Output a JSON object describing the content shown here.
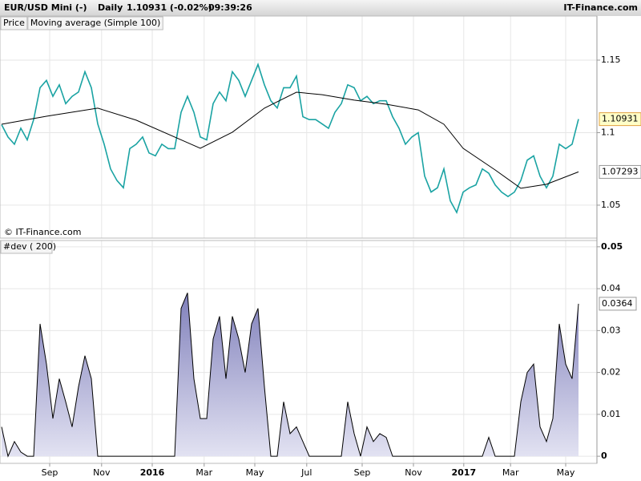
{
  "header": {
    "symbol": "EUR/USD Mini (-)",
    "period": "Daily",
    "quote": "1.10931 (-0.02%)",
    "time": "09:39:26",
    "brand": "IT-Finance.com"
  },
  "chart_data": [
    {
      "type": "line",
      "copyright": "© IT-Finance.com",
      "x": [
        0,
        1,
        2,
        3,
        4,
        5,
        6,
        7,
        8,
        9,
        10,
        11,
        12,
        13,
        14,
        15,
        16,
        17,
        18,
        19,
        20,
        21,
        22,
        23,
        24,
        25,
        26,
        27,
        28,
        29,
        30,
        31,
        32,
        33,
        34,
        35,
        36,
        37,
        38,
        39,
        40,
        41,
        42,
        43,
        44,
        45,
        46,
        47,
        48,
        49,
        50,
        51,
        52,
        53,
        54,
        55,
        56,
        57,
        58,
        59,
        60,
        61,
        62,
        63,
        64,
        65,
        66,
        67,
        68,
        69,
        70,
        71,
        72,
        73,
        74,
        75,
        76,
        77,
        78,
        79,
        80,
        81,
        82,
        83,
        84,
        85,
        86,
        87,
        88,
        89,
        90
      ],
      "xlim": [
        -0.25,
        92.875
      ],
      "ylim": [
        1.0273,
        1.1804
      ],
      "yticks": [
        1.05,
        1.1,
        1.15
      ],
      "grid": true,
      "series": [
        {
          "name": "Price",
          "color": "#1aa3a3",
          "values": [
            1.1055,
            1.097,
            1.092,
            1.103,
            1.095,
            1.109,
            1.131,
            1.136,
            1.125,
            1.133,
            1.12,
            1.125,
            1.128,
            1.142,
            1.131,
            1.106,
            1.092,
            1.075,
            1.067,
            1.062,
            1.089,
            1.092,
            1.097,
            1.086,
            1.084,
            1.092,
            1.089,
            1.089,
            1.114,
            1.125,
            1.114,
            1.097,
            1.095,
            1.12,
            1.128,
            1.122,
            1.142,
            1.136,
            1.125,
            1.136,
            1.147,
            1.133,
            1.122,
            1.117,
            1.131,
            1.131,
            1.139,
            1.111,
            1.109,
            1.109,
            1.106,
            1.103,
            1.114,
            1.12,
            1.133,
            1.131,
            1.122,
            1.125,
            1.12,
            1.122,
            1.122,
            1.111,
            1.103,
            1.092,
            1.097,
            1.1,
            1.07,
            1.059,
            1.062,
            1.075,
            1.053,
            1.045,
            1.059,
            1.062,
            1.064,
            1.075,
            1.072,
            1.064,
            1.059,
            1.056,
            1.059,
            1.067,
            1.081,
            1.084,
            1.07,
            1.062,
            1.07,
            1.092,
            1.089,
            1.092,
            1.10931
          ]
        },
        {
          "name": "Moving average (Simple 100)",
          "color": "#000000",
          "x": [
            0,
            7,
            15,
            21,
            29,
            31,
            36,
            41,
            46,
            50,
            55,
            60,
            65,
            69,
            72,
            77,
            81,
            85,
            90
          ],
          "values": [
            1.1058,
            1.1113,
            1.1169,
            1.1086,
            1.0931,
            1.0892,
            1.1003,
            1.1169,
            1.1279,
            1.1262,
            1.1224,
            1.1196,
            1.1157,
            1.1058,
            1.0892,
            1.0743,
            1.0616,
            1.0644,
            1.07293
          ]
        }
      ]
    },
    {
      "type": "area",
      "title": "#dev ( 200)",
      "x": [
        0,
        1,
        2,
        3,
        4,
        5,
        6,
        7,
        8,
        9,
        10,
        11,
        12,
        13,
        14,
        15,
        16,
        17,
        18,
        19,
        20,
        21,
        22,
        23,
        24,
        25,
        26,
        27,
        28,
        29,
        30,
        31,
        32,
        33,
        34,
        35,
        36,
        37,
        38,
        39,
        40,
        41,
        42,
        43,
        44,
        45,
        46,
        47,
        48,
        49,
        50,
        51,
        52,
        53,
        54,
        55,
        56,
        57,
        58,
        59,
        60,
        61,
        62,
        63,
        64,
        65,
        66,
        67,
        68,
        69,
        70,
        71,
        72,
        73,
        74,
        75,
        76,
        77,
        78,
        79,
        80,
        81,
        82,
        83,
        84,
        85,
        86,
        87,
        88,
        89,
        90
      ],
      "xlim": [
        -0.25,
        92.875
      ],
      "ylim": [
        -0.0017,
        0.0515
      ],
      "yticks": [
        0,
        0.01,
        0.02,
        0.03,
        0.04,
        0.05
      ],
      "grid": true,
      "xticks": [
        {
          "value": 7.5,
          "label": "Sep"
        },
        {
          "value": 15.6,
          "label": "Nov"
        },
        {
          "value": 23.5,
          "label": "2016"
        },
        {
          "value": 31.6,
          "label": "Mar"
        },
        {
          "value": 39.5,
          "label": "May"
        },
        {
          "value": 47.6,
          "label": "Jul"
        },
        {
          "value": 56.25,
          "label": "Sep"
        },
        {
          "value": 64.25,
          "label": "Nov"
        },
        {
          "value": 72.1,
          "label": "2017"
        },
        {
          "value": 79.4,
          "label": "Mar"
        },
        {
          "value": 88,
          "label": "May"
        }
      ],
      "color": "#8c8cc4",
      "values": [
        0.007,
        0,
        0.0035,
        0.001,
        0,
        0,
        0.0316,
        0.022,
        0.009,
        0.0185,
        0.013,
        0.007,
        0.0166,
        0.024,
        0.0185,
        0,
        0,
        0,
        0,
        0,
        0,
        0,
        0,
        0,
        0,
        0,
        0,
        0,
        0.0353,
        0.039,
        0.0185,
        0.009,
        0.009,
        0.028,
        0.0334,
        0.0185,
        0.0334,
        0.028,
        0.02,
        0.0316,
        0.0353,
        0.0166,
        0,
        0,
        0.013,
        0.0054,
        0.007,
        0.0035,
        0,
        0,
        0,
        0,
        0,
        0,
        0.013,
        0.0054,
        0,
        0.007,
        0.0035,
        0.0054,
        0.0045,
        0,
        0,
        0,
        0,
        0,
        0,
        0,
        0,
        0,
        0,
        0,
        0,
        0,
        0,
        0,
        0.0045,
        0,
        0,
        0,
        0,
        0.013,
        0.02,
        0.022,
        0.007,
        0.0035,
        0.009,
        0.0316,
        0.022,
        0.0185,
        0.0364
      ]
    }
  ]
}
